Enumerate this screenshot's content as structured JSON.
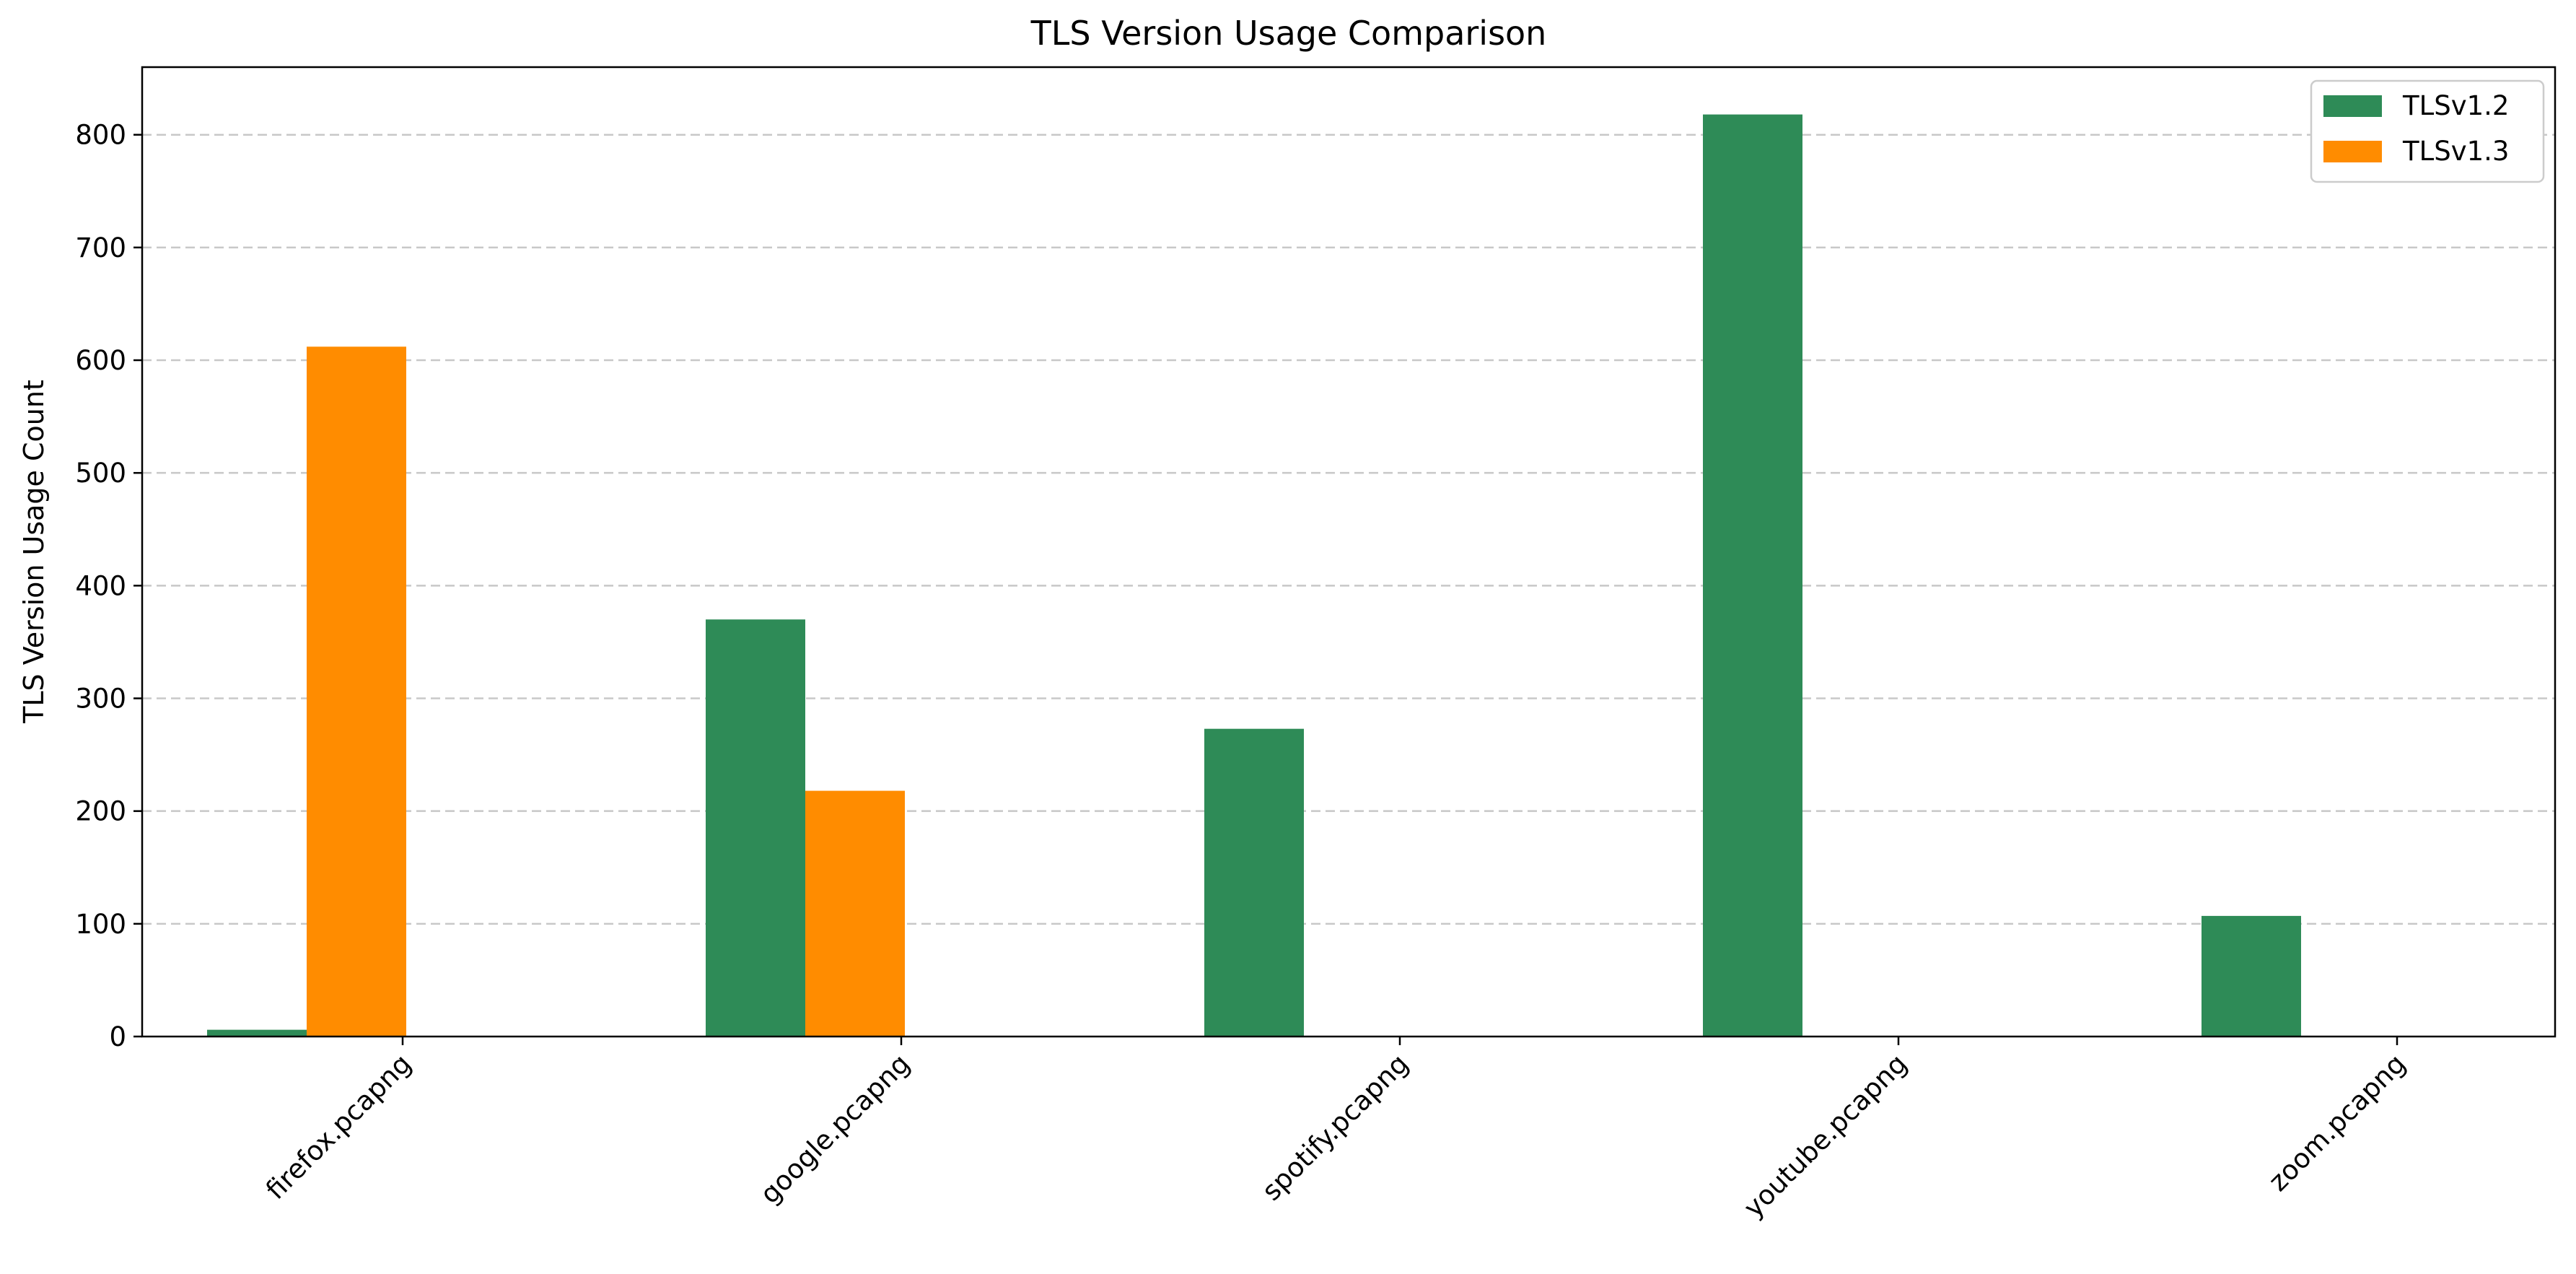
{
  "chart_data": {
    "type": "bar",
    "title": "TLS Version Usage Comparison",
    "xlabel": "",
    "ylabel": "TLS Version Usage Count",
    "categories": [
      "firefox.pcapng",
      "google.pcapng",
      "spotify.pcapng",
      "youtube.pcapng",
      "zoom.pcapng"
    ],
    "series": [
      {
        "name": "TLSv1.2",
        "color": "#2e8b57",
        "values": [
          6,
          370,
          273,
          818,
          107
        ]
      },
      {
        "name": "TLSv1.3",
        "color": "#ff8c00",
        "values": [
          612,
          218,
          0,
          0,
          0
        ]
      }
    ],
    "ylim": [
      0,
      860
    ],
    "yticks": [
      "0",
      "100",
      "200",
      "300",
      "400",
      "500",
      "600",
      "700",
      "800"
    ],
    "grid": "y-dashed",
    "legend": "top-right"
  }
}
